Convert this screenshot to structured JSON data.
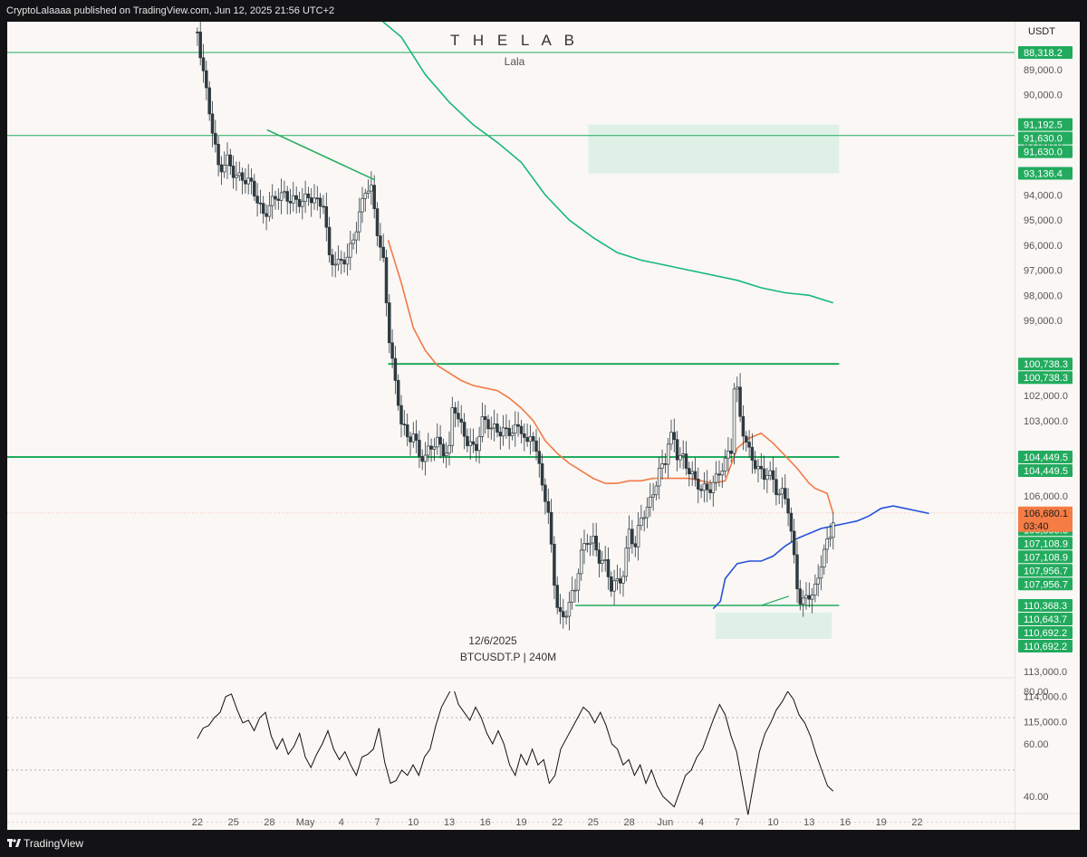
{
  "header": {
    "publisher_line": "CryptoLalaaaa published on TradingView.com, Jun 12, 2025 21:56 UTC+2"
  },
  "footer": {
    "brand": "TradingView",
    "logo_icon": "tradingview-logo-icon"
  },
  "chart_data": {
    "type": "candlestick",
    "symbol": "BTCUSDT.P | 240M",
    "date_label": "12/6/2025",
    "watermark_title": "T H E   L A B",
    "watermark_subtitle": "Lala",
    "currency": "USDT",
    "price_axis_inverted": true,
    "ylim": [
      87500,
      116200
    ],
    "x_ticks": [
      "22",
      "25",
      "28",
      "May",
      "4",
      "7",
      "10",
      "13",
      "16",
      "19",
      "22",
      "25",
      "28",
      "Jun",
      "4",
      "7",
      "10",
      "13",
      "16",
      "19",
      "22"
    ],
    "y_ticks": [
      "89,000.0",
      "90,000.0",
      "92,000.0",
      "94,000.0",
      "95,000.0",
      "96,000.0",
      "97,000.0",
      "98,000.0",
      "99,000.0",
      "102,000.0",
      "103,000.0",
      "105,000.0",
      "106,000.0",
      "113,000.0",
      "114,000.0",
      "115,000.0"
    ],
    "price_labels": [
      {
        "text": "88,318.2",
        "value": 88318.2,
        "color": "#22ab5e"
      },
      {
        "text": "91,192.5",
        "value": 91192.5,
        "color": "#22ab5e"
      },
      {
        "text": "91,630.0",
        "value": 91630.0,
        "color": "#22ab5e"
      },
      {
        "text": "91,630.0",
        "value": 91630.0,
        "color": "#22ab5e"
      },
      {
        "text": "93,136.4",
        "value": 93136.4,
        "color": "#22ab5e"
      },
      {
        "text": "100,738.3",
        "value": 100738.3,
        "color": "#22ab5e"
      },
      {
        "text": "100,738.3",
        "value": 100738.3,
        "color": "#22ab5e"
      },
      {
        "text": "104,449.5",
        "value": 104449.5,
        "color": "#22ab5e"
      },
      {
        "text": "104,449.5",
        "value": 104449.5,
        "color": "#22ab5e"
      },
      {
        "text": "106,805.8",
        "value": 106805.8,
        "color": "#22ab5e"
      },
      {
        "text": "106,805.8",
        "value": 106805.8,
        "color": "#22ab5e"
      },
      {
        "text": "107,108.9",
        "value": 107108.9,
        "color": "#22ab5e"
      },
      {
        "text": "107,108.9",
        "value": 107108.9,
        "color": "#22ab5e"
      },
      {
        "text": "107,956.7",
        "value": 107956.7,
        "color": "#22ab5e"
      },
      {
        "text": "107,956.7",
        "value": 107956.7,
        "color": "#22ab5e"
      },
      {
        "text": "110,368.3",
        "value": 110368.3,
        "color": "#22ab5e"
      },
      {
        "text": "110,643.7",
        "value": 110643.7,
        "color": "#22ab5e"
      },
      {
        "text": "110,692.2",
        "value": 110692.2,
        "color": "#22ab5e"
      },
      {
        "text": "110,692.2",
        "value": 110692.2,
        "color": "#22ab5e"
      }
    ],
    "last_price": {
      "text": "106,680.1",
      "countdown": "03:40",
      "value": 106680.1,
      "color": "#f57c45"
    },
    "horizontal_levels": [
      88318.2,
      91630.0,
      100738.3,
      104449.5,
      110368.3
    ],
    "zones": [
      {
        "from": 91192.5,
        "to": 93136.4,
        "start_day": 11.6,
        "end_day": 32.5
      },
      {
        "from": 110643.7,
        "to": 111700,
        "start_day": 22.2,
        "end_day": 31.9
      }
    ],
    "trendline": {
      "start": [
        -15.2,
        91400
      ],
      "end": [
        -6.2,
        93400
      ]
    },
    "close_series": [
      {
        "day": -21.0,
        "close": 87500
      },
      {
        "day": -20.5,
        "close": 88900
      },
      {
        "day": -19.8,
        "close": 91200
      },
      {
        "day": -19.2,
        "close": 93300
      },
      {
        "day": -18.5,
        "close": 92600
      },
      {
        "day": -17.5,
        "close": 93200
      },
      {
        "day": -16.5,
        "close": 93800
      },
      {
        "day": -15.5,
        "close": 94600
      },
      {
        "day": -15.0,
        "close": 94300
      },
      {
        "day": -14.0,
        "close": 94200
      },
      {
        "day": -13.0,
        "close": 94000
      },
      {
        "day": -12.0,
        "close": 94300
      },
      {
        "day": -11.0,
        "close": 94300
      },
      {
        "day": -10.5,
        "close": 94100
      },
      {
        "day": -10.0,
        "close": 96400
      },
      {
        "day": -9.3,
        "close": 97000
      },
      {
        "day": -8.5,
        "close": 96500
      },
      {
        "day": -8.0,
        "close": 95500
      },
      {
        "day": -7.0,
        "close": 93900
      },
      {
        "day": -6.5,
        "close": 94000
      },
      {
        "day": -6.0,
        "close": 95400
      },
      {
        "day": -5.5,
        "close": 96500
      },
      {
        "day": -5.0,
        "close": 99600
      },
      {
        "day": -4.5,
        "close": 101700
      },
      {
        "day": -4.0,
        "close": 103200
      },
      {
        "day": -3.5,
        "close": 103700
      },
      {
        "day": -3.0,
        "close": 103300
      },
      {
        "day": -2.5,
        "close": 104300
      },
      {
        "day": -2.0,
        "close": 104600
      },
      {
        "day": -1.5,
        "close": 104200
      },
      {
        "day": -1.0,
        "close": 103800
      },
      {
        "day": -0.5,
        "close": 104000
      },
      {
        "day": 0.0,
        "close": 104100
      },
      {
        "day": 0.3,
        "close": 102200
      },
      {
        "day": 0.8,
        "close": 103300
      },
      {
        "day": 1.5,
        "close": 103800
      },
      {
        "day": 2.2,
        "close": 103900
      },
      {
        "day": 2.8,
        "close": 103000
      },
      {
        "day": 3.5,
        "close": 103500
      },
      {
        "day": 4.5,
        "close": 103200
      },
      {
        "day": 5.5,
        "close": 103500
      },
      {
        "day": 6.0,
        "close": 103500
      },
      {
        "day": 6.5,
        "close": 104000
      },
      {
        "day": 6.9,
        "close": 103100
      },
      {
        "day": 7.2,
        "close": 104000
      },
      {
        "day": 7.8,
        "close": 105600
      },
      {
        "day": 8.3,
        "close": 107200
      },
      {
        "day": 8.8,
        "close": 109700
      },
      {
        "day": 9.1,
        "close": 110700
      },
      {
        "day": 9.5,
        "close": 110600
      },
      {
        "day": 9.9,
        "close": 110300
      },
      {
        "day": 10.5,
        "close": 109800
      },
      {
        "day": 11.0,
        "close": 108500
      },
      {
        "day": 11.5,
        "close": 107700
      },
      {
        "day": 12.0,
        "close": 107600
      },
      {
        "day": 12.5,
        "close": 108400
      },
      {
        "day": 13.0,
        "close": 108900
      },
      {
        "day": 13.5,
        "close": 109800
      },
      {
        "day": 14.0,
        "close": 109400
      },
      {
        "day": 14.5,
        "close": 108900
      },
      {
        "day": 15.0,
        "close": 107300
      },
      {
        "day": 15.5,
        "close": 108200
      },
      {
        "day": 16.0,
        "close": 107000
      },
      {
        "day": 16.5,
        "close": 106500
      },
      {
        "day": 17.0,
        "close": 105600
      },
      {
        "day": 17.5,
        "close": 105000
      },
      {
        "day": 18.0,
        "close": 104700
      },
      {
        "day": 18.3,
        "close": 104000
      },
      {
        "day": 18.7,
        "close": 103700
      },
      {
        "day": 19.0,
        "close": 104300
      },
      {
        "day": 19.5,
        "close": 104300
      },
      {
        "day": 20.0,
        "close": 104900
      },
      {
        "day": 20.5,
        "close": 105600
      },
      {
        "day": 21.0,
        "close": 105900
      },
      {
        "day": 21.5,
        "close": 105700
      },
      {
        "day": 22.0,
        "close": 105300
      },
      {
        "day": 22.5,
        "close": 105000
      },
      {
        "day": 23.0,
        "close": 104800
      },
      {
        "day": 23.5,
        "close": 104300
      },
      {
        "day": 23.7,
        "close": 101700
      },
      {
        "day": 24.0,
        "close": 101800
      },
      {
        "day": 24.2,
        "close": 102600
      },
      {
        "day": 24.6,
        "close": 103400
      },
      {
        "day": 25.0,
        "close": 104200
      },
      {
        "day": 25.4,
        "close": 104800
      },
      {
        "day": 25.8,
        "close": 105200
      },
      {
        "day": 26.2,
        "close": 105300
      },
      {
        "day": 26.6,
        "close": 104900
      },
      {
        "day": 27.0,
        "close": 105200
      },
      {
        "day": 27.4,
        "close": 105800
      },
      {
        "day": 27.8,
        "close": 106000
      },
      {
        "day": 28.2,
        "close": 106500
      },
      {
        "day": 28.4,
        "close": 107300
      },
      {
        "day": 28.7,
        "close": 108400
      },
      {
        "day": 29.0,
        "close": 109500
      },
      {
        "day": 29.3,
        "close": 110100
      },
      {
        "day": 29.6,
        "close": 110000
      },
      {
        "day": 29.9,
        "close": 109800
      },
      {
        "day": 30.2,
        "close": 110000
      },
      {
        "day": 30.5,
        "close": 109900
      },
      {
        "day": 30.8,
        "close": 109400
      },
      {
        "day": 31.1,
        "close": 108500
      },
      {
        "day": 31.4,
        "close": 108000
      },
      {
        "day": 31.7,
        "close": 107500
      },
      {
        "day": 32.0,
        "close": 106700
      }
    ],
    "series": [
      {
        "name": "",
        "color": "#17b87a",
        "values": [
          {
            "day": -11.0,
            "close": 86000
          },
          {
            "day": -9.0,
            "close": 86200
          },
          {
            "day": -6.0,
            "close": 86900
          },
          {
            "day": -4.0,
            "close": 87700
          },
          {
            "day": -2.0,
            "close": 89200
          },
          {
            "day": 0.0,
            "close": 90300
          },
          {
            "day": 2.0,
            "close": 91200
          },
          {
            "day": 4.0,
            "close": 91900
          },
          {
            "day": 6.0,
            "close": 92700
          },
          {
            "day": 8.0,
            "close": 94000
          },
          {
            "day": 10.0,
            "close": 95000
          },
          {
            "day": 12.0,
            "close": 95700
          },
          {
            "day": 14.0,
            "close": 96300
          },
          {
            "day": 16.0,
            "close": 96600
          },
          {
            "day": 18.0,
            "close": 96800
          },
          {
            "day": 20.0,
            "close": 97000
          },
          {
            "day": 22.0,
            "close": 97200
          },
          {
            "day": 24.0,
            "close": 97400
          },
          {
            "day": 26.0,
            "close": 97700
          },
          {
            "day": 28.0,
            "close": 97900
          },
          {
            "day": 30.0,
            "close": 98000
          },
          {
            "day": 32.0,
            "close": 98300
          }
        ]
      },
      {
        "name": "",
        "color": "#f27a45",
        "values": [
          {
            "day": -5.1,
            "close": 95800
          },
          {
            "day": -4.0,
            "close": 97500
          },
          {
            "day": -3.0,
            "close": 99300
          },
          {
            "day": -2.0,
            "close": 100200
          },
          {
            "day": -1.0,
            "close": 100800
          },
          {
            "day": 0.0,
            "close": 101100
          },
          {
            "day": 1.0,
            "close": 101400
          },
          {
            "day": 2.0,
            "close": 101600
          },
          {
            "day": 3.0,
            "close": 101700
          },
          {
            "day": 4.0,
            "close": 101800
          },
          {
            "day": 5.0,
            "close": 102100
          },
          {
            "day": 6.0,
            "close": 102500
          },
          {
            "day": 7.0,
            "close": 103000
          },
          {
            "day": 8.0,
            "close": 103800
          },
          {
            "day": 9.0,
            "close": 104300
          },
          {
            "day": 10.0,
            "close": 104700
          },
          {
            "day": 11.0,
            "close": 105000
          },
          {
            "day": 12.0,
            "close": 105300
          },
          {
            "day": 13.0,
            "close": 105500
          },
          {
            "day": 14.0,
            "close": 105500
          },
          {
            "day": 15.0,
            "close": 105400
          },
          {
            "day": 16.0,
            "close": 105400
          },
          {
            "day": 17.0,
            "close": 105300
          },
          {
            "day": 18.0,
            "close": 105300
          },
          {
            "day": 19.0,
            "close": 105300
          },
          {
            "day": 20.0,
            "close": 105300
          },
          {
            "day": 21.0,
            "close": 105400
          },
          {
            "day": 22.0,
            "close": 105500
          },
          {
            "day": 23.0,
            "close": 105400
          },
          {
            "day": 24.0,
            "close": 104100
          },
          {
            "day": 25.0,
            "close": 103700
          },
          {
            "day": 26.0,
            "close": 103500
          },
          {
            "day": 27.0,
            "close": 103900
          },
          {
            "day": 28.0,
            "close": 104400
          },
          {
            "day": 29.0,
            "close": 104900
          },
          {
            "day": 30.0,
            "close": 105500
          },
          {
            "day": 30.5,
            "close": 105700
          },
          {
            "day": 31.5,
            "close": 105900
          },
          {
            "day": 32.0,
            "close": 106700
          }
        ]
      },
      {
        "name": "",
        "color": "#2652d9",
        "values": [
          {
            "day": 22.0,
            "close": 110500
          },
          {
            "day": 22.6,
            "close": 110200
          },
          {
            "day": 23.0,
            "close": 109300
          },
          {
            "day": 24.0,
            "close": 108700
          },
          {
            "day": 25.0,
            "close": 108600
          },
          {
            "day": 26.0,
            "close": 108600
          },
          {
            "day": 27.0,
            "close": 108400
          },
          {
            "day": 28.0,
            "close": 108000
          },
          {
            "day": 29.0,
            "close": 107700
          },
          {
            "day": 30.0,
            "close": 107500
          },
          {
            "day": 31.0,
            "close": 107300
          },
          {
            "day": 32.0,
            "close": 107200
          },
          {
            "day": 33.0,
            "close": 107100
          },
          {
            "day": 34.0,
            "close": 107000
          },
          {
            "day": 35.0,
            "close": 106800
          },
          {
            "day": 36.0,
            "close": 106500
          },
          {
            "day": 37.0,
            "close": 106400
          },
          {
            "day": 38.0,
            "close": 106500
          },
          {
            "day": 39.0,
            "close": 106600
          },
          {
            "day": 40.0,
            "close": 106700
          }
        ]
      }
    ],
    "oscillator": {
      "ticks": [
        "80.00",
        "60.00",
        "40.00"
      ],
      "ylim": [
        27,
        88
      ],
      "levels": [
        70,
        50,
        30
      ],
      "values": [
        62,
        66,
        67,
        70,
        72,
        78,
        79,
        73,
        68,
        69,
        65,
        70,
        72,
        63,
        58,
        62,
        56,
        59,
        64,
        55,
        51,
        56,
        60,
        65,
        58,
        54,
        57,
        52,
        48,
        55,
        56,
        58,
        66,
        53,
        45,
        46,
        50,
        48,
        52,
        48,
        55,
        58,
        67,
        74,
        78,
        82,
        75,
        72,
        69,
        74,
        70,
        64,
        60,
        65,
        60,
        52,
        48,
        56,
        52,
        58,
        52,
        54,
        45,
        48,
        58,
        62,
        66,
        70,
        74,
        72,
        68,
        72,
        67,
        60,
        58,
        52,
        54,
        48,
        52,
        45,
        50,
        44,
        40,
        38,
        36,
        42,
        48,
        50,
        55,
        58,
        64,
        70,
        75,
        71,
        63,
        57,
        45,
        33,
        45,
        57,
        64,
        68,
        73,
        76,
        80,
        77,
        71,
        68,
        63,
        56,
        50,
        44,
        42
      ]
    }
  }
}
